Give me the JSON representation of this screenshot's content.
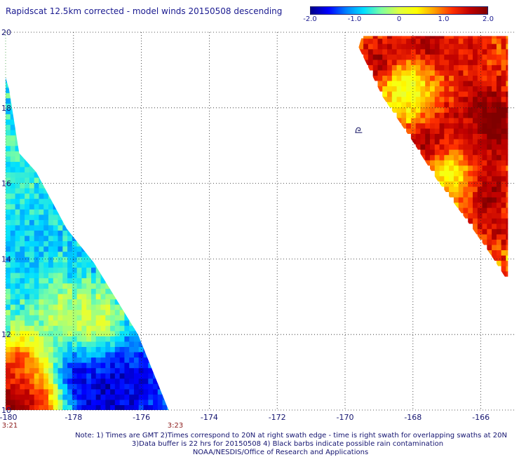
{
  "title": "Rapidscat 12.5km corrected - model winds 20150508 descending",
  "colorbar": {
    "labels": [
      "-2.0",
      "-1.0",
      "0",
      "1.0",
      "2.0"
    ],
    "min": -2.0,
    "max": 2.0,
    "colors": [
      "#00008a",
      "#0000ff",
      "#0080ff",
      "#00e0ff",
      "#7fffa0",
      "#e0ff40",
      "#ffff00",
      "#ffa000",
      "#ff3000",
      "#c00000",
      "#800000"
    ]
  },
  "chart_data": {
    "type": "heatmap",
    "title": "Rapidscat 12.5km corrected - model winds 20150508 descending",
    "xlim": [
      -180,
      -165
    ],
    "ylim": [
      10,
      20
    ],
    "x_ticks": [
      "-180",
      "-178",
      "-176",
      "-174",
      "-172",
      "-170",
      "-168",
      "-166"
    ],
    "y_ticks": [
      "20",
      "18",
      "16",
      "14",
      "12",
      "10"
    ],
    "x_tick_values": [
      -180,
      -178,
      -176,
      -174,
      -172,
      -170,
      -168,
      -166
    ],
    "y_tick_values": [
      20,
      18,
      16,
      14,
      12,
      10
    ],
    "grid": true,
    "value_range": [
      -2.0,
      2.0
    ],
    "time_labels": [
      {
        "text": "3:21",
        "x": -180
      },
      {
        "text": "3:23",
        "x": -175
      }
    ],
    "swaths": [
      {
        "name": "left swath",
        "polygon": [
          [
            -180,
            18.8
          ],
          [
            -179.9,
            18.5
          ],
          [
            -179.6,
            16.8
          ],
          [
            -179.1,
            16.3
          ],
          [
            -178.2,
            14.8
          ],
          [
            -177.4,
            13.9
          ],
          [
            -176.1,
            12.0
          ],
          [
            -175.2,
            10.0
          ],
          [
            -180,
            10.0
          ]
        ],
        "features": [
          {
            "lon": -179.7,
            "lat": 10.4,
            "radius": 0.8,
            "value": 2.1
          },
          {
            "lon": -178.9,
            "lat": 10.4,
            "radius": 0.5,
            "value": 1.9
          },
          {
            "lon": -179.6,
            "lat": 11.2,
            "radius": 0.6,
            "value": 1.3
          },
          {
            "lon": -176.9,
            "lat": 10.6,
            "radius": 0.9,
            "value": -2.1
          },
          {
            "lon": -177.6,
            "lat": 11.0,
            "radius": 0.7,
            "value": -1.7
          },
          {
            "lon": -176.0,
            "lat": 10.7,
            "radius": 0.6,
            "value": -1.6
          },
          {
            "lon": -179.3,
            "lat": 14.3,
            "radius": 1.0,
            "value": -0.9
          },
          {
            "lon": -179.4,
            "lat": 16.8,
            "radius": 1.0,
            "value": -0.6
          },
          {
            "lon": -178.4,
            "lat": 12.6,
            "radius": 0.7,
            "value": -0.2
          },
          {
            "lon": -177.3,
            "lat": 12.4,
            "radius": 0.6,
            "value": 0.0
          }
        ]
      },
      {
        "name": "right swath",
        "polygon": [
          [
            -169.5,
            19.9
          ],
          [
            -165.2,
            19.9
          ],
          [
            -165.2,
            13.4
          ],
          [
            -165.7,
            14.1
          ],
          [
            -166.4,
            15.0
          ],
          [
            -167.3,
            16.1
          ],
          [
            -168.0,
            17.1
          ],
          [
            -168.9,
            18.3
          ],
          [
            -169.6,
            19.6
          ]
        ],
        "features": [
          {
            "lon": -168.8,
            "lat": 19.1,
            "radius": 0.5,
            "value": 2.2
          },
          {
            "lon": -167.6,
            "lat": 19.6,
            "radius": 0.6,
            "value": 1.9
          },
          {
            "lon": -166.2,
            "lat": 19.6,
            "radius": 0.5,
            "value": 1.4
          },
          {
            "lon": -165.9,
            "lat": 17.6,
            "radius": 0.8,
            "value": 2.3
          },
          {
            "lon": -167.5,
            "lat": 17.1,
            "radius": 0.5,
            "value": 2.0
          },
          {
            "lon": -166.5,
            "lat": 17.3,
            "radius": 0.6,
            "value": 1.5
          },
          {
            "lon": -165.8,
            "lat": 15.7,
            "radius": 0.5,
            "value": 1.9
          },
          {
            "lon": -165.4,
            "lat": 14.8,
            "radius": 0.4,
            "value": 1.6
          },
          {
            "lon": -168.2,
            "lat": 18.5,
            "radius": 0.6,
            "value": 0.2
          },
          {
            "lon": -166.9,
            "lat": 16.2,
            "radius": 0.5,
            "value": 0.4
          }
        ]
      }
    ],
    "markers": [
      {
        "lon": -169.6,
        "lat": 17.4,
        "type": "rain-barb"
      }
    ]
  },
  "notes": {
    "line1": "Note: 1) Times are GMT 2)Times correspond to 20N at right swath edge - time is right swath for overlapping swaths at 20N",
    "line2": "3)Data buffer is 22 hrs for 20150508 4) Black barbs indicate possible rain contamination",
    "line3": "NOAA/NESDIS/Office of Research and Applications"
  }
}
